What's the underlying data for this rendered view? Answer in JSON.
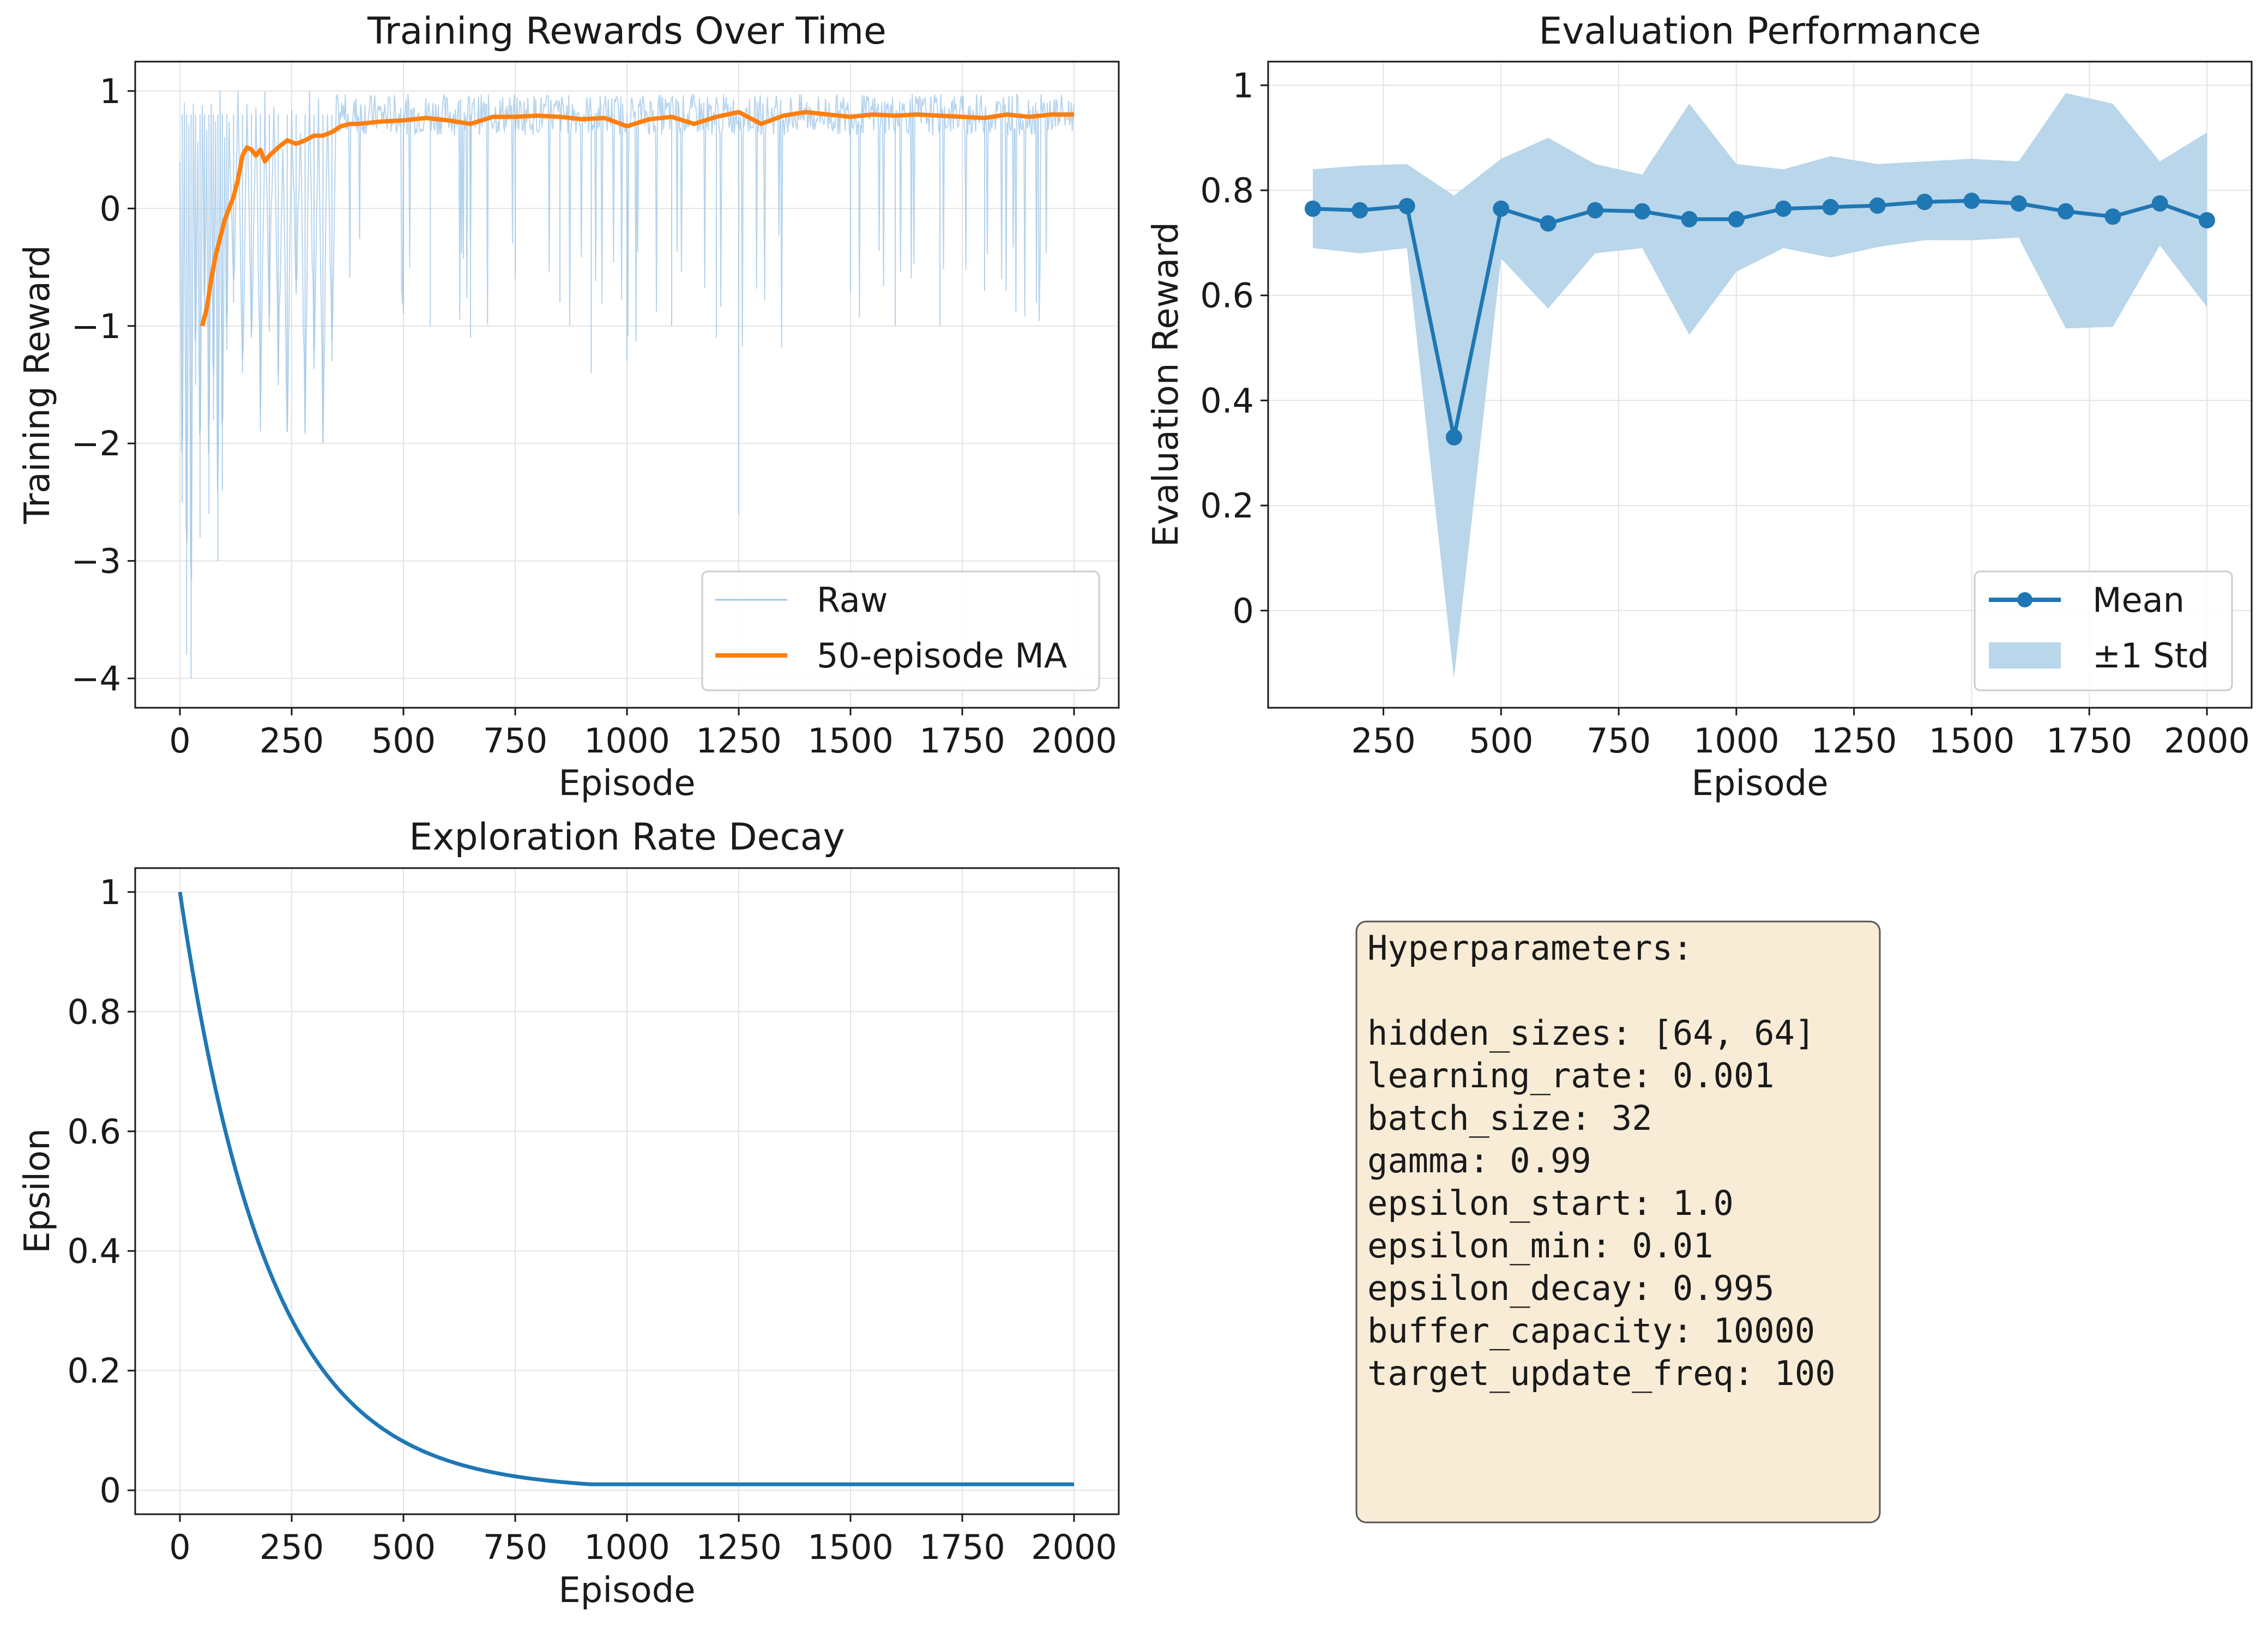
{
  "chart_data": [
    {
      "type": "line",
      "title": "Training Rewards Over Time",
      "xlabel": "Episode",
      "ylabel": "Training Reward",
      "xlim": [
        -100,
        2100
      ],
      "ylim": [
        -4.25,
        1.25
      ],
      "xticks": [
        0,
        250,
        500,
        750,
        1000,
        1250,
        1500,
        1750,
        2000
      ],
      "yticks": [
        1,
        0,
        -1,
        -2,
        -3,
        -4
      ],
      "grid": true,
      "legend": "lower-right",
      "series": [
        {
          "name": "Raw",
          "color": "#9ec5e8",
          "description_points": [
            [
              0,
              0.4
            ],
            [
              5,
              -2.5
            ],
            [
              10,
              0.9
            ],
            [
              15,
              -3.8
            ],
            [
              20,
              0.8
            ],
            [
              25,
              -4.0
            ],
            [
              30,
              1.0
            ],
            [
              35,
              -1.5
            ],
            [
              40,
              0.7
            ],
            [
              45,
              -2.8
            ],
            [
              50,
              0.9
            ],
            [
              55,
              -1.0
            ],
            [
              60,
              0.6
            ],
            [
              65,
              -2.6
            ],
            [
              70,
              1.0
            ],
            [
              75,
              -1.8
            ],
            [
              80,
              0.8
            ],
            [
              85,
              -3.0
            ],
            [
              90,
              0.9
            ],
            [
              95,
              -2.4
            ],
            [
              100,
              0.5
            ],
            [
              105,
              -1.2
            ],
            [
              110,
              0.9
            ],
            [
              120,
              -0.8
            ],
            [
              130,
              1.0
            ],
            [
              140,
              -1.4
            ],
            [
              150,
              0.7
            ],
            [
              160,
              -1.1
            ],
            [
              170,
              0.9
            ],
            [
              180,
              -1.7
            ],
            [
              190,
              0.8
            ],
            [
              200,
              -0.9
            ],
            [
              210,
              1.0
            ],
            [
              220,
              -1.4
            ],
            [
              230,
              0.7
            ],
            [
              240,
              -1.9
            ],
            [
              250,
              0.9
            ],
            [
              260,
              -0.6
            ],
            [
              270,
              0.8
            ],
            [
              280,
              -1.9
            ],
            [
              290,
              1.0
            ],
            [
              300,
              -1.2
            ],
            [
              310,
              0.9
            ],
            [
              320,
              -2.0
            ],
            [
              330,
              0.8
            ],
            [
              340,
              -1.3
            ],
            [
              350,
              0.9
            ],
            [
              400,
              -0.4
            ],
            [
              450,
              0.8
            ],
            [
              500,
              -0.9
            ],
            [
              520,
              0.9
            ],
            [
              560,
              -1.0
            ],
            [
              600,
              0.8
            ],
            [
              650,
              -1.1
            ],
            [
              700,
              0.9
            ],
            [
              750,
              -0.6
            ],
            [
              800,
              0.8
            ],
            [
              850,
              -0.8
            ],
            [
              900,
              0.9
            ],
            [
              920,
              -1.4
            ],
            [
              960,
              0.8
            ],
            [
              1000,
              -1.3
            ],
            [
              1050,
              0.9
            ],
            [
              1100,
              -1.0
            ],
            [
              1150,
              0.8
            ],
            [
              1200,
              -1.1
            ],
            [
              1250,
              -2.6
            ],
            [
              1260,
              0.9
            ],
            [
              1300,
              -0.5
            ],
            [
              1350,
              0.8
            ],
            [
              1400,
              -0.4
            ],
            [
              1450,
              0.9
            ],
            [
              1500,
              -0.7
            ],
            [
              1550,
              0.8
            ],
            [
              1600,
              -1.0
            ],
            [
              1650,
              0.9
            ],
            [
              1700,
              -1.0
            ],
            [
              1750,
              0.8
            ],
            [
              1800,
              -0.7
            ],
            [
              1850,
              0.9
            ],
            [
              1900,
              -0.2
            ],
            [
              1950,
              0.8
            ],
            [
              2000,
              0.9
            ]
          ]
        },
        {
          "name": "50-episode MA",
          "color": "#ff7f0e",
          "x": [
            50,
            60,
            70,
            80,
            90,
            100,
            110,
            120,
            130,
            140,
            150,
            160,
            170,
            180,
            190,
            200,
            220,
            240,
            260,
            280,
            300,
            320,
            340,
            360,
            380,
            400,
            450,
            500,
            550,
            600,
            650,
            700,
            750,
            800,
            850,
            900,
            950,
            1000,
            1050,
            1100,
            1150,
            1200,
            1250,
            1300,
            1350,
            1400,
            1450,
            1500,
            1550,
            1600,
            1650,
            1700,
            1750,
            1800,
            1850,
            1900,
            1950,
            2000
          ],
          "y": [
            -1.0,
            -0.85,
            -0.6,
            -0.4,
            -0.25,
            -0.1,
            0.0,
            0.1,
            0.25,
            0.45,
            0.52,
            0.5,
            0.45,
            0.5,
            0.4,
            0.45,
            0.52,
            0.58,
            0.55,
            0.58,
            0.62,
            0.62,
            0.65,
            0.7,
            0.72,
            0.72,
            0.74,
            0.75,
            0.77,
            0.75,
            0.72,
            0.78,
            0.78,
            0.79,
            0.78,
            0.76,
            0.77,
            0.7,
            0.76,
            0.78,
            0.72,
            0.78,
            0.82,
            0.72,
            0.79,
            0.82,
            0.8,
            0.78,
            0.8,
            0.79,
            0.8,
            0.79,
            0.78,
            0.77,
            0.8,
            0.78,
            0.8,
            0.8
          ]
        }
      ]
    },
    {
      "type": "line",
      "title": "Evaluation Performance",
      "xlabel": "Episode",
      "ylabel": "Evaluation Reward",
      "xlim": [
        5,
        2095
      ],
      "ylim": [
        -0.185,
        1.045
      ],
      "xticks": [
        250,
        500,
        750,
        1000,
        1250,
        1500,
        1750,
        2000
      ],
      "yticks": [
        1.0,
        0.8,
        0.6,
        0.4,
        0.2,
        0.0
      ],
      "grid": true,
      "legend": "lower-right",
      "x": [
        100,
        200,
        300,
        400,
        500,
        600,
        700,
        800,
        900,
        1000,
        1100,
        1200,
        1300,
        1400,
        1500,
        1600,
        1700,
        1800,
        1900,
        2000
      ],
      "series": [
        {
          "name": "Mean",
          "color": "#1f77b4",
          "values": [
            0.765,
            0.762,
            0.77,
            0.33,
            0.765,
            0.737,
            0.762,
            0.76,
            0.745,
            0.745,
            0.765,
            0.768,
            0.771,
            0.778,
            0.78,
            0.775,
            0.76,
            0.75,
            0.775,
            0.743
          ]
        },
        {
          "name": "±1 Std",
          "color": "#b9d6ea",
          "upper": [
            0.84,
            0.847,
            0.85,
            0.79,
            0.86,
            0.9,
            0.85,
            0.83,
            0.965,
            0.85,
            0.84,
            0.865,
            0.85,
            0.855,
            0.86,
            0.855,
            0.985,
            0.965,
            0.855,
            0.91
          ],
          "lower": [
            0.69,
            0.68,
            0.69,
            -0.13,
            0.67,
            0.575,
            0.68,
            0.69,
            0.525,
            0.645,
            0.69,
            0.672,
            0.692,
            0.705,
            0.705,
            0.71,
            0.537,
            0.54,
            0.695,
            0.578
          ]
        }
      ]
    },
    {
      "type": "line",
      "title": "Exploration Rate Decay",
      "xlabel": "Episode",
      "ylabel": "Epsilon",
      "xlim": [
        -100,
        2100
      ],
      "ylim": [
        -0.04,
        1.04
      ],
      "xticks": [
        0,
        250,
        500,
        750,
        1000,
        1250,
        1500,
        1750,
        2000
      ],
      "yticks": [
        1.0,
        0.8,
        0.6,
        0.4,
        0.2,
        0.0
      ],
      "grid": true,
      "series": [
        {
          "color": "#1f77b4",
          "decay": 0.995,
          "start": 1.0,
          "min": 0.01,
          "x_end": 2000
        }
      ]
    }
  ],
  "hyperparameters": {
    "heading": "Hyperparameters:",
    "lines": [
      "hidden_sizes: [64, 64]",
      "learning_rate: 0.001",
      "batch_size: 32",
      "gamma: 0.99",
      "epsilon_start: 1.0",
      "epsilon_min: 0.01",
      "epsilon_decay: 0.995",
      "buffer_capacity: 10000",
      "target_update_freq: 100"
    ],
    "background": "#f8ecd6",
    "border": "#555555"
  }
}
